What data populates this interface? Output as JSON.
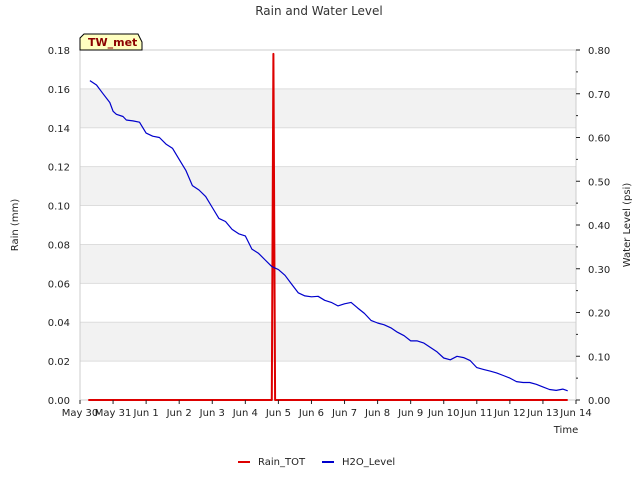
{
  "chart_data": {
    "type": "line",
    "title": "Rain and Water Level",
    "xlabel": "Time",
    "ylabel_left": "Rain (mm)",
    "ylabel_right": "Water Level (psi)",
    "badge": "TW_met",
    "x_ticks": [
      "May 30",
      "May 31",
      "Jun 1",
      "Jun 2",
      "Jun 3",
      "Jun 4",
      "Jun 5",
      "Jun 6",
      "Jun 7",
      "Jun 8",
      "Jun 9",
      "Jun 10",
      "Jun 11",
      "Jun 12",
      "Jun 13",
      "Jun 14"
    ],
    "xlim_days": [
      0,
      15
    ],
    "ylim_left": [
      0,
      0.18
    ],
    "y_ticks_left": [
      "0.00",
      "0.02",
      "0.04",
      "0.06",
      "0.08",
      "0.10",
      "0.12",
      "0.14",
      "0.16",
      "0.18"
    ],
    "ylim_right": [
      0,
      0.8
    ],
    "y_ticks_right": [
      "0.00",
      "0.10",
      "0.20",
      "0.30",
      "0.40",
      "0.50",
      "0.60",
      "0.70",
      "0.80"
    ],
    "grid": true,
    "legend_position": "bottom",
    "series": [
      {
        "name": "Rain_TOT",
        "axis": "left",
        "color": "#dd0000",
        "points": [
          [
            0.25,
            0
          ],
          [
            5.8,
            0
          ],
          [
            5.85,
            0.178
          ],
          [
            5.9,
            0
          ],
          [
            14.75,
            0
          ]
        ]
      },
      {
        "name": "H2O_Level",
        "axis": "right",
        "color": "#0000cc",
        "points": [
          [
            0.3,
            0.73
          ],
          [
            0.5,
            0.72
          ],
          [
            0.7,
            0.7
          ],
          [
            0.9,
            0.68
          ],
          [
            1.0,
            0.66
          ],
          [
            1.1,
            0.653
          ],
          [
            1.3,
            0.648
          ],
          [
            1.4,
            0.64
          ],
          [
            1.6,
            0.638
          ],
          [
            1.8,
            0.635
          ],
          [
            2.0,
            0.61
          ],
          [
            2.2,
            0.603
          ],
          [
            2.4,
            0.6
          ],
          [
            2.6,
            0.585
          ],
          [
            2.8,
            0.575
          ],
          [
            3.0,
            0.55
          ],
          [
            3.2,
            0.525
          ],
          [
            3.4,
            0.49
          ],
          [
            3.6,
            0.48
          ],
          [
            3.8,
            0.465
          ],
          [
            4.0,
            0.44
          ],
          [
            4.2,
            0.415
          ],
          [
            4.4,
            0.408
          ],
          [
            4.6,
            0.39
          ],
          [
            4.8,
            0.38
          ],
          [
            5.0,
            0.375
          ],
          [
            5.2,
            0.345
          ],
          [
            5.4,
            0.335
          ],
          [
            5.6,
            0.32
          ],
          [
            5.8,
            0.305
          ],
          [
            6.0,
            0.298
          ],
          [
            6.2,
            0.285
          ],
          [
            6.4,
            0.265
          ],
          [
            6.6,
            0.245
          ],
          [
            6.8,
            0.238
          ],
          [
            7.0,
            0.236
          ],
          [
            7.2,
            0.237
          ],
          [
            7.4,
            0.228
          ],
          [
            7.6,
            0.223
          ],
          [
            7.8,
            0.215
          ],
          [
            8.0,
            0.22
          ],
          [
            8.2,
            0.223
          ],
          [
            8.4,
            0.21
          ],
          [
            8.6,
            0.198
          ],
          [
            8.8,
            0.182
          ],
          [
            9.0,
            0.176
          ],
          [
            9.2,
            0.172
          ],
          [
            9.4,
            0.165
          ],
          [
            9.6,
            0.155
          ],
          [
            9.8,
            0.147
          ],
          [
            10.0,
            0.135
          ],
          [
            10.2,
            0.135
          ],
          [
            10.4,
            0.13
          ],
          [
            10.6,
            0.12
          ],
          [
            10.8,
            0.11
          ],
          [
            11.0,
            0.096
          ],
          [
            11.2,
            0.092
          ],
          [
            11.4,
            0.1
          ],
          [
            11.6,
            0.097
          ],
          [
            11.8,
            0.09
          ],
          [
            12.0,
            0.074
          ],
          [
            12.2,
            0.07
          ],
          [
            12.4,
            0.066
          ],
          [
            12.6,
            0.062
          ],
          [
            12.8,
            0.056
          ],
          [
            13.0,
            0.05
          ],
          [
            13.2,
            0.042
          ],
          [
            13.4,
            0.04
          ],
          [
            13.6,
            0.04
          ],
          [
            13.8,
            0.036
          ],
          [
            14.0,
            0.03
          ],
          [
            14.2,
            0.024
          ],
          [
            14.4,
            0.022
          ],
          [
            14.6,
            0.025
          ],
          [
            14.75,
            0.021
          ]
        ]
      }
    ]
  }
}
